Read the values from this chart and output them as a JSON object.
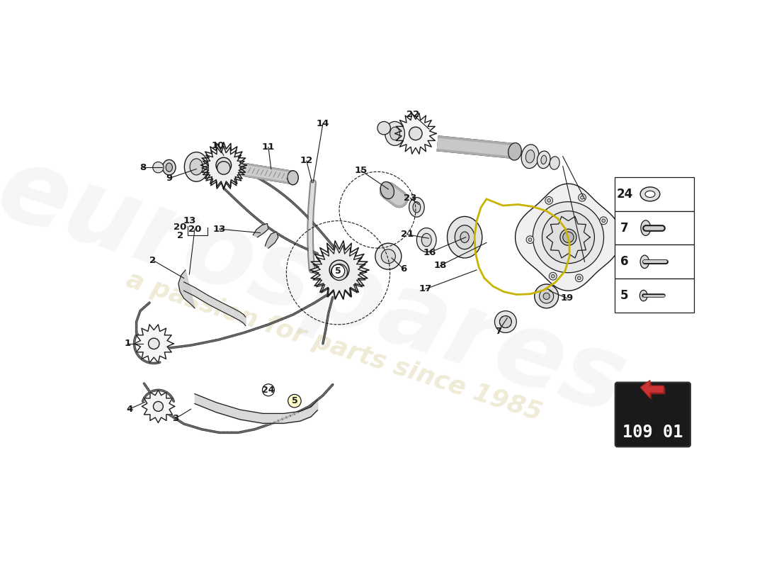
{
  "bg_color": "#ffffff",
  "watermark_text1": "eurospares",
  "watermark_text2": "a passion for parts since 1985",
  "part_number_box": "109 01",
  "line_color": "#1a1a1a",
  "chain_color": "#444444",
  "chain_lw": 2.5,
  "guide_color": "#888888",
  "highlight_yellow": "#c8b400",
  "legend_items": [
    {
      "num": "24"
    },
    {
      "num": "7"
    },
    {
      "num": "6"
    },
    {
      "num": "5"
    }
  ],
  "wm1_color": "#c8ccd8",
  "wm2_color": "#c8b870",
  "wm1_alpha": 0.18,
  "wm2_alpha": 0.28
}
